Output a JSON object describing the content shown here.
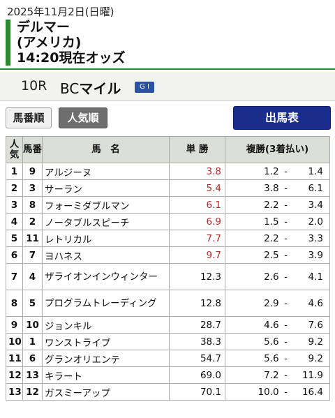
{
  "header": {
    "date": "2025年11月2日(日曜)",
    "venue_line1": "デルマー",
    "venue_line2": "(アメリカ)",
    "venue_line3": "14:20現在オッズ"
  },
  "race": {
    "number": "10R",
    "prefix": "BC",
    "name": "マイル",
    "grade": "G I"
  },
  "buttons": {
    "umaban": "馬番順",
    "ninki": "人気順",
    "shutsuba": "出馬表"
  },
  "table": {
    "headers": {
      "ninki": "人気",
      "umaban": "馬番",
      "name": "馬　名",
      "tansho": "単 勝",
      "fukusho": "複勝(3着払い)"
    },
    "rows": [
      {
        "ninki": "1",
        "umaban": "9",
        "name": "アルジーヌ",
        "tansho": "3.8",
        "lo": "1.2",
        "dash": "-",
        "hi": "1.4"
      },
      {
        "ninki": "2",
        "umaban": "3",
        "name": "サーラン",
        "tansho": "5.4",
        "lo": "3.8",
        "dash": "-",
        "hi": "6.1"
      },
      {
        "ninki": "3",
        "umaban": "8",
        "name": "フォーミダブルマン",
        "tansho": "6.1",
        "lo": "2.2",
        "dash": "-",
        "hi": "3.4"
      },
      {
        "ninki": "4",
        "umaban": "2",
        "name": "ノータブルスピーチ",
        "tansho": "6.9",
        "lo": "1.5",
        "dash": "-",
        "hi": "2.0"
      },
      {
        "ninki": "5",
        "umaban": "11",
        "name": "レトリカル",
        "tansho": "7.7",
        "lo": "2.2",
        "dash": "-",
        "hi": "3.3"
      },
      {
        "ninki": "6",
        "umaban": "7",
        "name": "ヨハネス",
        "tansho": "9.7",
        "lo": "2.5",
        "dash": "-",
        "hi": "3.9"
      },
      {
        "ninki": "7",
        "umaban": "4",
        "name": "ザライオンインウィンター",
        "tansho": "12.3",
        "lo": "2.6",
        "dash": "-",
        "hi": "4.1"
      },
      {
        "ninki": "8",
        "umaban": "5",
        "name": "プログラムトレーディング",
        "tansho": "12.8",
        "lo": "2.9",
        "dash": "-",
        "hi": "4.6"
      },
      {
        "ninki": "9",
        "umaban": "10",
        "name": "ジョンキル",
        "tansho": "28.7",
        "lo": "4.6",
        "dash": "-",
        "hi": "7.6"
      },
      {
        "ninki": "10",
        "umaban": "1",
        "name": "ワンストライプ",
        "tansho": "38.3",
        "lo": "5.6",
        "dash": "-",
        "hi": "9.2"
      },
      {
        "ninki": "11",
        "umaban": "6",
        "name": "グランオリエンテ",
        "tansho": "54.7",
        "lo": "5.6",
        "dash": "-",
        "hi": "9.2"
      },
      {
        "ninki": "12",
        "umaban": "13",
        "name": "キラート",
        "tansho": "69.0",
        "lo": "7.2",
        "dash": "-",
        "hi": "11.9"
      },
      {
        "ninki": "13",
        "umaban": "12",
        "name": "ガスミーアップ",
        "tansho": "70.1",
        "lo": "10.0",
        "dash": "-",
        "hi": "16.4"
      }
    ]
  },
  "colors": {
    "accent_green": "#2f8a2f",
    "favorite_odds_red": "#b52a2a",
    "shutsuba_button": "#1b2d8c",
    "grade_badge": "#2a52a0"
  }
}
